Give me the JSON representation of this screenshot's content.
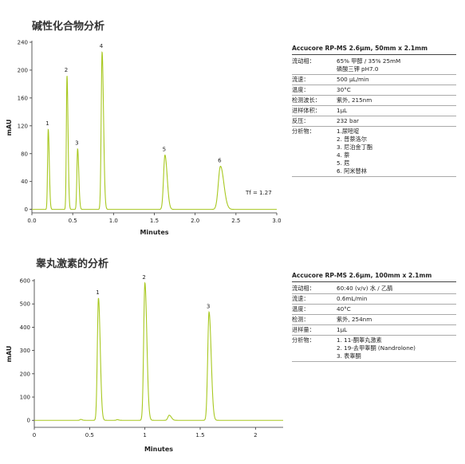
{
  "panels": [
    {
      "title": "碱性化合物分析",
      "info": {
        "heading": "Accucore RP-MS 2.6μm, 50mm x 2.1mm",
        "rows": [
          {
            "label": "流动相：",
            "values": [
              "65% 甲醇 / 35% 25mM",
              "磷酸三钾 pH7.0"
            ]
          },
          {
            "label": "流速：",
            "values": [
              "500 μL/min"
            ]
          },
          {
            "label": "温度：",
            "values": [
              "30°C"
            ]
          },
          {
            "label": "检测波长：",
            "values": [
              "紫外, 215nm"
            ]
          },
          {
            "label": "进样体积：",
            "values": [
              "1μL"
            ]
          },
          {
            "label": "反压：",
            "values": [
              "232 bar"
            ]
          },
          {
            "label": "分析物：",
            "values": [
              "1.尿嘧啶",
              "2. 普萘洛尔",
              "3. 尼泊金丁酯",
              "4. 萘",
              "5. 苊",
              "6. 阿米替林"
            ]
          }
        ]
      }
    },
    {
      "title": "睾丸激素的分析",
      "info": {
        "heading": "Accucore RP-MS 2.6μm, 100mm x 2.1mm",
        "rows": [
          {
            "label": "流动相：",
            "values": [
              "60:40 (v/v) 水 / 乙腈"
            ]
          },
          {
            "label": "流速：",
            "values": [
              "0.6mL/min"
            ]
          },
          {
            "label": "温度：",
            "values": [
              "40°C"
            ]
          },
          {
            "label": "检测：",
            "values": [
              "紫外, 254nm"
            ]
          },
          {
            "label": "进样量：",
            "values": [
              "1μL"
            ]
          },
          {
            "label": "分析物：",
            "values": [
              "1. 11-酮睾丸激素",
              "2. 19-去甲睾酮 (Nandrolone)",
              "3. 表睾酮"
            ]
          }
        ]
      }
    }
  ],
  "chart_data": [
    {
      "type": "line",
      "title": "碱性化合物分析",
      "xlabel": "Minutes",
      "ylabel": "mAU",
      "xlim": [
        0,
        3.0
      ],
      "ylim": [
        -5,
        240
      ],
      "xticks": [
        "0.0",
        "0.5",
        "1.0",
        "1.5",
        "2.0",
        "2.5",
        "3.0"
      ],
      "yticks": [
        "0",
        "40",
        "80",
        "120",
        "160",
        "200",
        "240"
      ],
      "peaks": [
        {
          "label": "1",
          "time": 0.2,
          "height": 115,
          "width": 0.008
        },
        {
          "label": "2",
          "time": 0.43,
          "height": 192,
          "width": 0.008
        },
        {
          "label": "3",
          "time": 0.56,
          "height": 87,
          "width": 0.009
        },
        {
          "label": "4",
          "time": 0.86,
          "height": 226,
          "width": 0.011
        },
        {
          "label": "5",
          "time": 1.63,
          "height": 78,
          "width": 0.017
        },
        {
          "label": "6",
          "time": 2.31,
          "height": 62,
          "width": 0.026
        }
      ],
      "annotation": "Tf = 1.27"
    },
    {
      "type": "line",
      "title": "睾丸激素的分析",
      "xlabel": "Minutes",
      "ylabel": "mAU",
      "xlim": [
        0,
        2.25
      ],
      "ylim": [
        -30,
        600
      ],
      "xticks": [
        "0",
        "0.5",
        "1",
        "1.5",
        "2"
      ],
      "yticks": [
        "0",
        "100",
        "200",
        "300",
        "400",
        "500",
        "600"
      ],
      "peaks": [
        {
          "label": "1",
          "time": 0.58,
          "height": 525,
          "width": 0.01
        },
        {
          "label": "2",
          "time": 1.0,
          "height": 590,
          "width": 0.011
        },
        {
          "label": "3",
          "time": 1.58,
          "height": 465,
          "width": 0.012
        }
      ],
      "minor_peaks": [
        {
          "time": 1.22,
          "height": 22,
          "width": 0.012
        },
        {
          "time": 0.42,
          "height": 4,
          "width": 0.008
        },
        {
          "time": 0.75,
          "height": 3,
          "width": 0.008
        }
      ],
      "annotation": ""
    }
  ]
}
